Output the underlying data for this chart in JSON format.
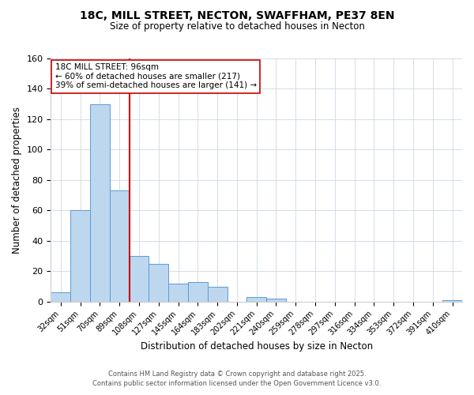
{
  "title": "18C, MILL STREET, NECTON, SWAFFHAM, PE37 8EN",
  "subtitle": "Size of property relative to detached houses in Necton",
  "xlabel": "Distribution of detached houses by size in Necton",
  "ylabel": "Number of detached properties",
  "bar_labels": [
    "32sqm",
    "51sqm",
    "70sqm",
    "89sqm",
    "108sqm",
    "127sqm",
    "145sqm",
    "164sqm",
    "183sqm",
    "202sqm",
    "221sqm",
    "240sqm",
    "259sqm",
    "278sqm",
    "297sqm",
    "316sqm",
    "334sqm",
    "353sqm",
    "372sqm",
    "391sqm",
    "410sqm"
  ],
  "bar_values": [
    6,
    60,
    130,
    73,
    30,
    25,
    12,
    13,
    10,
    0,
    3,
    2,
    0,
    0,
    0,
    0,
    0,
    0,
    0,
    0,
    1
  ],
  "bar_color": "#BDD7EE",
  "bar_edge_color": "#5B9BD5",
  "ylim": [
    0,
    160
  ],
  "yticks": [
    0,
    20,
    40,
    60,
    80,
    100,
    120,
    140,
    160
  ],
  "vline_x": 3.5,
  "vline_color": "#CC0000",
  "annotation_title": "18C MILL STREET: 96sqm",
  "annotation_line1": "← 60% of detached houses are smaller (217)",
  "annotation_line2": "39% of semi-detached houses are larger (141) →",
  "footer_line1": "Contains HM Land Registry data © Crown copyright and database right 2025.",
  "footer_line2": "Contains public sector information licensed under the Open Government Licence v3.0.",
  "background_color": "#FFFFFF",
  "grid_color": "#D0D8E4"
}
